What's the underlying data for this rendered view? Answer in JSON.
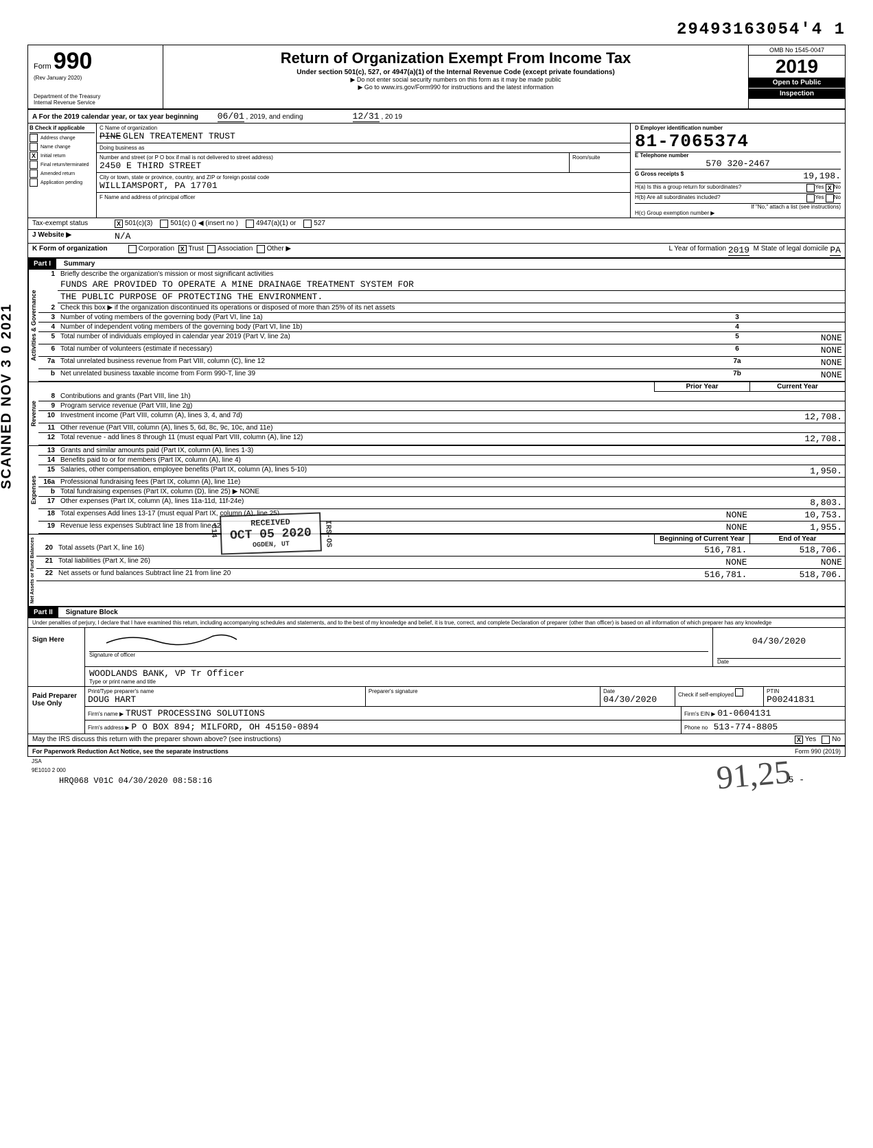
{
  "top_stamp_id": "29493163054'4  1",
  "scanned_stamp": "SCANNED NOV 3 0 2021",
  "header": {
    "form_label": "Form",
    "form_number": "990",
    "rev": "(Rev  January 2020)",
    "dept1": "Department of the Treasury",
    "dept2": "Internal Revenue Service",
    "title": "Return of Organization Exempt From Income Tax",
    "sub1": "Under section 501(c), 527, or 4947(a)(1) of the Internal Revenue Code (except private foundations)",
    "sub2": "▶ Do not enter social security numbers on this form as it may be made public",
    "sub3": "▶ Go to www.irs.gov/Form990 for instructions and the latest information",
    "omb": "OMB No  1545-0047",
    "year": "2019",
    "open": "Open to Public",
    "inspection": "Inspection"
  },
  "section_a": {
    "label": "A  For the 2019 calendar year, or tax year beginning",
    "begin": "06/01",
    "begin_year": ", 2019, and ending",
    "end": "12/31",
    "end_year": ", 20 19"
  },
  "section_b": {
    "header": "B   Check if applicable",
    "items": [
      {
        "label": "Address change",
        "checked": false
      },
      {
        "label": "Name change",
        "checked": false
      },
      {
        "label": "Initial return",
        "checked": true
      },
      {
        "label": "Final return/terminated",
        "checked": false
      },
      {
        "label": "Amended return",
        "checked": false
      },
      {
        "label": "Application pending",
        "checked": false
      }
    ]
  },
  "section_c": {
    "name_label": "C Name of organization",
    "name": "PINE GLEN TREATEMENT TRUST",
    "dba_label": "Doing business as",
    "street_label": "Number and street (or P O  box if mail is not delivered to street address)",
    "room_label": "Room/suite",
    "street": "2450 E THIRD STREET",
    "city_label": "City or town, state or province, country, and ZIP or foreign postal code",
    "city": "WILLIAMSPORT, PA   17701",
    "f_label": "F  Name and address of principal officer"
  },
  "section_d": {
    "label": "D Employer identification number",
    "ein": "81-7065374",
    "e_label": "E Telephone number",
    "phone": "570 320-2467",
    "g_label": "G Gross receipts $",
    "g_value": "19,198.",
    "ha_label": "H(a)  Is this a group return for subordinates?",
    "ha_yes": "Yes",
    "ha_no": "No",
    "ha_checked": "no",
    "hb_label": "H(b)  Are all subordinates included?",
    "hb_yes": "Yes",
    "hb_no": "No",
    "hb_note": "If \"No,\" attach a list  (see instructions)",
    "hc_label": "H(c)  Group exemption number  ▶"
  },
  "tax_status": {
    "label": "Tax-exempt status",
    "c501c3_checked": true,
    "c501c3": "501(c)(3)",
    "c501c": "501(c) (",
    "insert": ")  ◀  (insert no )",
    "c4947": "4947(a)(1) or",
    "c527": "527"
  },
  "website": {
    "label": "J     Website  ▶",
    "value": "N/A"
  },
  "form_of_org": {
    "label": "K    Form of organization",
    "corp": "Corporation",
    "trust": "Trust",
    "trust_checked": true,
    "assoc": "Association",
    "other": "Other ▶",
    "l_label": "L Year of formation",
    "l_value": "2019",
    "m_label": "M State of legal domicile",
    "m_value": "PA"
  },
  "part1": {
    "header": "Part I",
    "title": "Summary",
    "line1_label": "Briefly describe the organization's mission or most significant activities",
    "mission1": "FUNDS ARE PROVIDED TO OPERATE A MINE DRAINAGE TREATMENT SYSTEM FOR",
    "mission2": "THE PUBLIC PURPOSE OF PROTECTING THE ENVIRONMENT.",
    "line2": "Check this box  ▶         if the organization discontinued its operations or disposed of more than 25% of its net assets",
    "rows_gov": [
      {
        "n": "3",
        "t": "Number of voting members of the governing body (Part VI, line 1a)",
        "box": "3",
        "v": ""
      },
      {
        "n": "4",
        "t": "Number of independent voting members of the governing body (Part VI, line 1b)",
        "box": "4",
        "v": ""
      },
      {
        "n": "5",
        "t": "Total number of individuals employed in calendar year 2019 (Part V, line 2a)",
        "box": "5",
        "v": "NONE"
      },
      {
        "n": "6",
        "t": "Total number of volunteers (estimate if necessary)",
        "box": "6",
        "v": "NONE"
      },
      {
        "n": "7a",
        "t": "Total unrelated business revenue from Part VIII, column (C), line 12",
        "box": "7a",
        "v": "NONE"
      },
      {
        "n": "b",
        "t": "Net unrelated business taxable income from Form 990-T, line 39",
        "box": "7b",
        "v": "NONE"
      }
    ],
    "col_headers": {
      "prior": "Prior Year",
      "current": "Current Year"
    },
    "rows_rev": [
      {
        "n": "8",
        "t": "Contributions and grants (Part VIII, line 1h)",
        "p": "",
        "c": ""
      },
      {
        "n": "9",
        "t": "Program service revenue (Part VIII, line 2g)",
        "p": "",
        "c": ""
      },
      {
        "n": "10",
        "t": "Investment income (Part VIII, column (A), lines 3, 4, and 7d)",
        "p": "",
        "c": "12,708."
      },
      {
        "n": "11",
        "t": "Other revenue (Part VIII, column (A), lines 5, 6d, 8c, 9c, 10c, and 11e)",
        "p": "",
        "c": ""
      },
      {
        "n": "12",
        "t": "Total revenue - add lines 8 through 11 (must equal Part VIII, column (A), line 12)",
        "p": "",
        "c": "12,708."
      }
    ],
    "rows_exp": [
      {
        "n": "13",
        "t": "Grants and similar amounts paid (Part IX, column (A), lines 1-3)",
        "p": "",
        "c": ""
      },
      {
        "n": "14",
        "t": "Benefits paid to or for members (Part IX, column (A), line 4)",
        "p": "",
        "c": ""
      },
      {
        "n": "15",
        "t": "Salaries, other compensation, employee benefits (Part IX, column (A), lines 5-10)",
        "p": "",
        "c": "1,950."
      },
      {
        "n": "16a",
        "t": "Professional fundraising fees (Part IX, column (A), line 11e)",
        "p": "",
        "c": ""
      },
      {
        "n": "b",
        "t": "Total fundraising expenses (Part IX, column (D), line 25) ▶              NONE",
        "p": "",
        "c": "",
        "no_cols": true
      },
      {
        "n": "17",
        "t": "Other expenses (Part IX, column (A), lines 11a-11d, 11f-24e)",
        "p": "",
        "c": "8,803."
      },
      {
        "n": "18",
        "t": "Total expenses  Add lines 13-17 (must equal Part IX, column (A), line 25)",
        "p": "NONE",
        "c": "10,753."
      },
      {
        "n": "19",
        "t": "Revenue less expenses  Subtract line 18 from line 12",
        "p": "NONE",
        "c": "1,955."
      }
    ],
    "col_headers2": {
      "begin": "Beginning of Current Year",
      "end": "End of Year"
    },
    "rows_net": [
      {
        "n": "20",
        "t": "Total assets (Part X, line 16)",
        "p": "516,781.",
        "c": "518,706."
      },
      {
        "n": "21",
        "t": "Total liabilities (Part X, line 26)",
        "p": "NONE",
        "c": "NONE"
      },
      {
        "n": "22",
        "t": "Net assets or fund balances  Subtract line 21 from line 20",
        "p": "516,781.",
        "c": "518,706."
      }
    ],
    "v_gov": "Activities & Governance",
    "v_rev": "Revenue",
    "v_exp": "Expenses",
    "v_net": "Net Assets or Fund Balances"
  },
  "received_stamp": {
    "line1": "RECEIVED",
    "line2": "OCT 05 2020",
    "line3": "OGDEN, UT",
    "side1": "C14",
    "side2": "IRS-OS"
  },
  "part2": {
    "header": "Part II",
    "title": "Signature Block",
    "perjury": "Under penalties of perjury, I declare that I have examined this return, including accompanying schedules and statements, and to the best of my knowledge and belief, it is true, correct, and complete  Declaration of preparer (other than officer) is based on all information of which preparer has any knowledge",
    "sign_here": "Sign Here",
    "sig_officer": "Signature of officer",
    "date_label": "Date",
    "sign_date": "04/30/2020",
    "officer_name": "WOODLANDS BANK, VP Tr Officer",
    "type_name": "Type or print name and title",
    "paid": "Paid Preparer Use Only",
    "prep_name_label": "Print/Type preparer's name",
    "prep_name": "DOUG HART",
    "prep_sig_label": "Preparer's signature",
    "prep_date_label": "Date",
    "prep_date": "04/30/2020",
    "check_self": "Check          if self-employed",
    "ptin_label": "PTIN",
    "ptin": "P00241831",
    "firm_name_label": "Firm's name   ▶",
    "firm_name": "TRUST PROCESSING SOLUTIONS",
    "firm_ein_label": "Firm's EIN  ▶",
    "firm_ein": "01-0604131",
    "firm_addr_label": "Firm's address ▶",
    "firm_addr": "P O BOX 894; MILFORD, OH   45150-0894",
    "phone_label": "Phone no",
    "phone": "513-774-8805",
    "discuss": "May the IRS discuss this return with the preparer shown above? (see instructions)",
    "discuss_yes": "Yes",
    "discuss_no": "No",
    "discuss_checked": "yes"
  },
  "footer": {
    "paperwork": "For Paperwork Reduction Act Notice, see the separate instructions",
    "form": "Form 990 (2019)",
    "jsa": "JSA",
    "jsa2": "9E1010 2 000",
    "hrq": "HRQ068 V01C 04/30/2020 08:58:16",
    "page": "5    -"
  },
  "handwriting": "91,25"
}
